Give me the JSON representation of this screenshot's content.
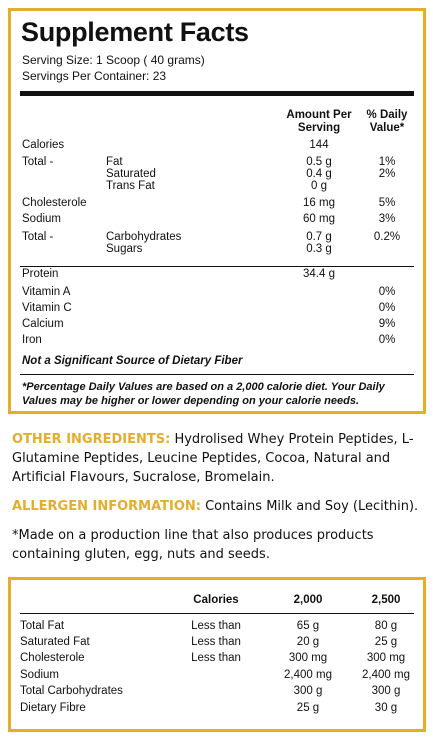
{
  "facts": {
    "title": "Supplement Facts",
    "serving_size": "Serving Size: 1 Scoop ( 40 grams)",
    "servings_per_container": "Servings Per Container: 23",
    "header": {
      "amount_line1": "Amount Per",
      "amount_line2": "Serving",
      "dv_line1": "% Daily",
      "dv_line2": "Value*"
    },
    "group1": [
      {
        "col1": "Calories",
        "col2": "",
        "amount": "144",
        "dv": ""
      },
      {
        "col1": "Total -",
        "col2": "Fat",
        "amount": "0.5 g",
        "dv": "1%"
      },
      {
        "col1": "",
        "col2": "Saturated",
        "amount": "0.4 g",
        "dv": "2%"
      },
      {
        "col1": "",
        "col2": "Trans Fat",
        "amount": "0 g",
        "dv": ""
      },
      {
        "col1": "Cholesterole",
        "col2": "",
        "amount": "16 mg",
        "dv": "5%"
      },
      {
        "col1": "Sodium",
        "col2": "",
        "amount": "60 mg",
        "dv": "3%"
      },
      {
        "col1": "Total -",
        "col2": "Carbohydrates",
        "amount": "0.7 g",
        "dv": "0.2%"
      },
      {
        "col1": "",
        "col2": "Sugars",
        "amount": "0.3 g",
        "dv": ""
      }
    ],
    "group2": [
      {
        "name": "Protein",
        "amount": "34.4 g",
        "dv": ""
      },
      {
        "name": "Vitamin A",
        "amount": "",
        "dv": "0%"
      },
      {
        "name": "Vitamin C",
        "amount": "",
        "dv": "0%"
      },
      {
        "name": "Calcium",
        "amount": "",
        "dv": "9%"
      },
      {
        "name": "Iron",
        "amount": "",
        "dv": "0%"
      }
    ],
    "not_significant": "Not a Significant Source of Dietary Fiber",
    "footnote": "*Percentage Daily Values are based on a 2,000 calorie diet. Your Daily Values may be higher or lower depending on your calorie needs."
  },
  "other_ingredients": {
    "label": "OTHER INGREDIENTS:",
    "text": " Hydrolised Whey Protein Peptides, L-Glutamine Peptides, Leucine Peptides, Cocoa, Natural and Artificial Flavours, Sucralose, Bromelain."
  },
  "allergen": {
    "label": "ALLERGEN INFORMATION:",
    "text": " Contains Milk and Soy (Lecithin)."
  },
  "production_note": "*Made on a production line that also produces products containing gluten, egg, nuts and seeds.",
  "reference": {
    "headers": [
      "Calories",
      "2,000",
      "2,500"
    ],
    "rows": [
      {
        "name": "Total Fat",
        "qual": "Less than",
        "v1": "65 g",
        "v2": "80 g"
      },
      {
        "name": "Saturated Fat",
        "qual": "Less than",
        "v1": "20 g",
        "v2": "25 g"
      },
      {
        "name": "Cholesterole",
        "qual": "Less than",
        "v1": "300 mg",
        "v2": "300 mg"
      },
      {
        "name": "Sodium",
        "qual": "",
        "v1": "2,400 mg",
        "v2": "2,400 mg"
      },
      {
        "name": "Total Carbohydrates",
        "qual": "",
        "v1": "300 g",
        "v2": "300 g"
      },
      {
        "name": "Dietary Fibre",
        "qual": "",
        "v1": "25 g",
        "v2": "30 g"
      }
    ]
  }
}
